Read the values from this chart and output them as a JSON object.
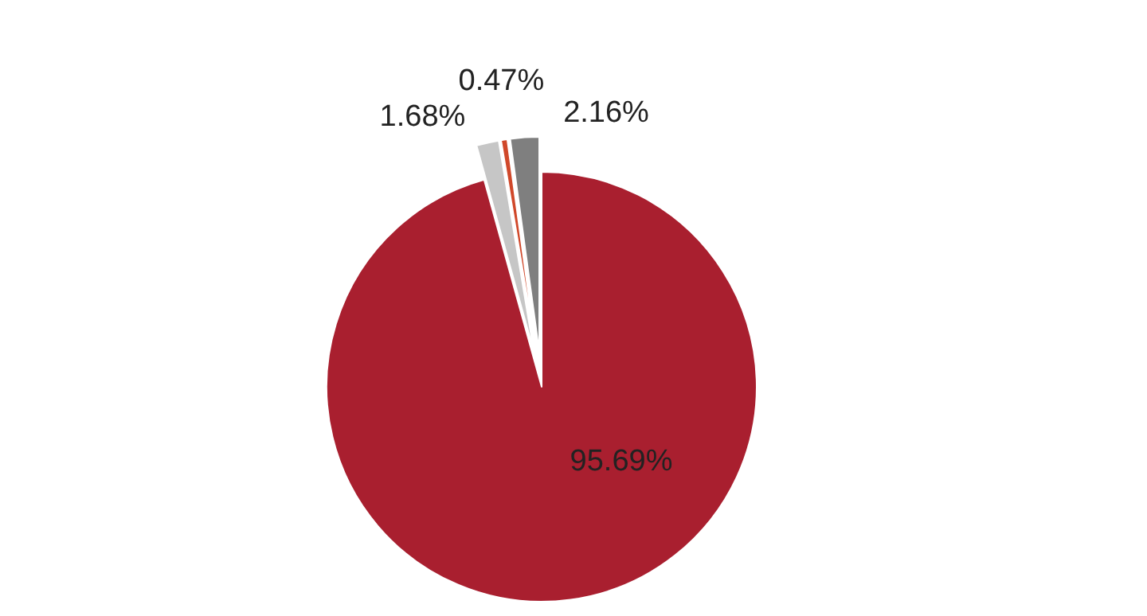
{
  "chart_data": {
    "type": "pie",
    "categories": [
      null,
      null,
      null,
      null
    ],
    "values": [
      95.69,
      1.68,
      0.47,
      2.16
    ],
    "colors": [
      "#a91f2f",
      "#c6c6c6",
      "#d0482a",
      "#7f7f7f"
    ],
    "value_labels": [
      "95.69%",
      "1.68%",
      "0.47%",
      "2.16%"
    ]
  }
}
